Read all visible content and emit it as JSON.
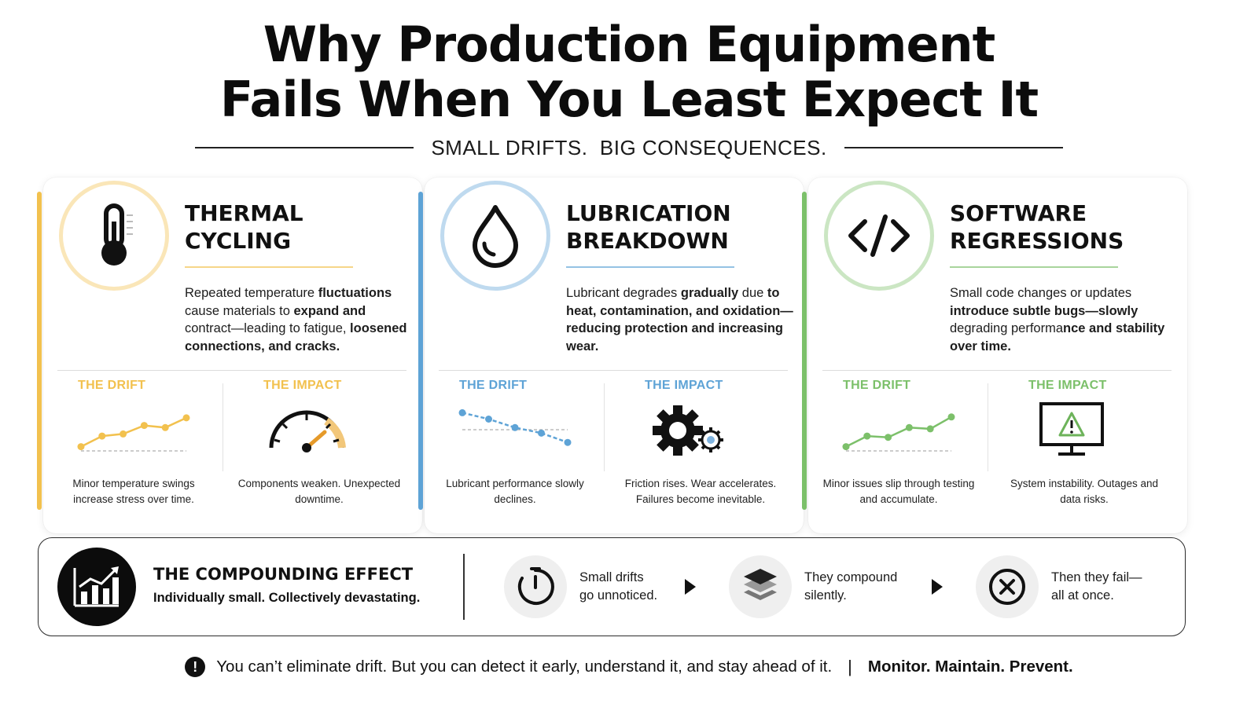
{
  "header": {
    "title_line1": "Why Production Equipment",
    "title_line2": "Fails When You Least Expect It",
    "subtitle": "SMALL DRIFTS.  BIG CONSEQUENCES."
  },
  "cards": [
    {
      "icon": "thermometer-icon",
      "accent": "#f2c14e",
      "title_line1": "THERMAL",
      "title_line2": "CYCLING",
      "description_html": "Repeated temperature <b>fluctuations</b> cause materials to <b>expand and</b> contract—leading to fatigue, <b>loosened connections, and cracks.</b>",
      "drift_label": "THE DRIFT",
      "impact_label": "THE IMPACT",
      "drift_caption": "Minor temperature swings increase stress over time.",
      "impact_caption": "Components weaken. Unexpected downtime.",
      "drift_trend": [
        0.1,
        0.35,
        0.4,
        0.6,
        0.55,
        0.78
      ],
      "impact_icon": "gauge-icon"
    },
    {
      "icon": "water-drop-icon",
      "accent": "#5ea3d6",
      "title_line1": "LUBRICATION",
      "title_line2": "BREAKDOWN",
      "description_html": "Lubricant degrades <b>gradually</b> due <b>to heat, contamination,</b> <b>and oxidation—reducing</b> <b>protection and increasing wear.</b>",
      "drift_label": "THE DRIFT",
      "impact_label": "THE IMPACT",
      "drift_caption": "Lubricant performance slowly declines.",
      "impact_caption": "Friction rises. Wear accelerates. Failures become inevitable.",
      "drift_trend": [
        0.9,
        0.75,
        0.55,
        0.42,
        0.2
      ],
      "impact_icon": "gears-icon"
    },
    {
      "icon": "code-brackets-icon",
      "accent": "#7cc06a",
      "title_line1": "SOFTWARE",
      "title_line2": "REGRESSIONS",
      "description_html": "Small code changes or updates <b>introduce subtle bugs—slowly</b> degrading performa<b>nce and</b> <b>stability over time.</b>",
      "drift_label": "THE DRIFT",
      "impact_label": "THE IMPACT",
      "drift_caption": "Minor issues slip through testing and accumulate.",
      "impact_caption": "System instability. Outages and data risks.",
      "drift_trend": [
        0.1,
        0.35,
        0.32,
        0.55,
        0.52,
        0.8
      ],
      "impact_icon": "monitor-warning-icon"
    }
  ],
  "compounding": {
    "title": "THE COMPOUNDING EFFECT",
    "subtitle": "Individually small. Collectively devastating.",
    "steps": [
      {
        "icon": "timer-icon",
        "line1": "Small drifts",
        "line2": "go unnoticed."
      },
      {
        "icon": "layers-icon",
        "line1": "They compound",
        "line2": "silently."
      },
      {
        "icon": "x-circle-icon",
        "line1": "Then they fail—",
        "line2": "all at once."
      }
    ]
  },
  "footer": {
    "alert_symbol": "!",
    "message": "You can’t eliminate drift. But you can detect it early, understand it, and stay ahead of it.",
    "separator": "|",
    "motto": "Monitor. Maintain. Prevent."
  }
}
